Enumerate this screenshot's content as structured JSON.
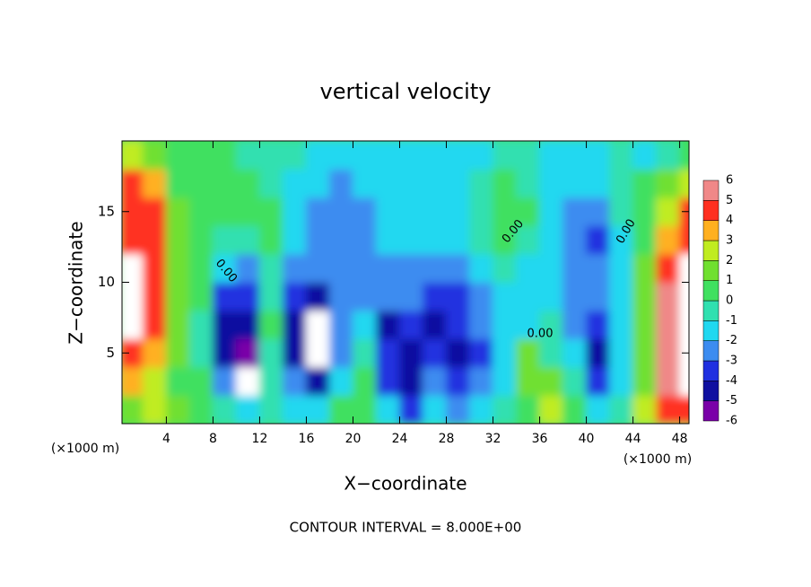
{
  "chart_data": {
    "type": "contour",
    "title": "vertical velocity",
    "x_label": "X−coordinate",
    "y_label": "Z−coordinate",
    "x_unit": "(×1000 m)",
    "footer": "CONTOUR INTERVAL = 8.000E+00",
    "contour_label": "0.00",
    "xlim": [
      0.2,
      48.8
    ],
    "ylim": [
      0,
      20
    ],
    "xticks": [
      4,
      8,
      12,
      16,
      20,
      24,
      28,
      32,
      36,
      40,
      44,
      48
    ],
    "yticks": [
      5,
      10,
      15
    ],
    "x": [
      1,
      3,
      5,
      7,
      9,
      11,
      13,
      15,
      17,
      19,
      21,
      23,
      25,
      27,
      29,
      31,
      33,
      35,
      37,
      39,
      41,
      43,
      45,
      47,
      49
    ],
    "y": [
      1,
      3,
      5,
      7,
      9,
      11,
      13,
      15,
      17,
      19
    ],
    "z": [
      [
        2,
        3,
        2,
        1,
        0,
        -1,
        0,
        -1,
        -1,
        1,
        1,
        -1,
        -3,
        -1,
        -2,
        -1,
        0,
        1,
        3,
        1,
        -1,
        0,
        3,
        5,
        5
      ],
      [
        4,
        3,
        1,
        1,
        -2,
        -7,
        0,
        -2,
        -4,
        -1,
        1,
        -3,
        -4,
        -2,
        -3,
        -2,
        -1,
        2,
        2,
        0,
        -3,
        -1,
        2,
        6,
        7
      ],
      [
        5,
        4,
        2,
        0,
        -4,
        -5,
        0,
        -4,
        -7,
        -2,
        0,
        -3,
        -4,
        -3,
        -4,
        -3,
        -1,
        2,
        0,
        -1,
        -4,
        -1,
        2,
        6,
        7
      ],
      [
        7,
        5,
        2,
        0,
        -4,
        -4,
        1,
        -4,
        -7,
        -2,
        -1,
        -4,
        -3,
        -4,
        -3,
        -2,
        -1,
        -1,
        0,
        -2,
        -3,
        -1,
        2,
        6,
        7
      ],
      [
        7,
        5,
        2,
        1,
        -3,
        -3,
        0,
        -3,
        -4,
        -2,
        -2,
        -2,
        -2,
        -3,
        -3,
        -2,
        -1,
        -1,
        -1,
        -2,
        -2,
        -1,
        2,
        6,
        7
      ],
      [
        7,
        5,
        2,
        1,
        -1,
        -2,
        0,
        -2,
        -2,
        -2,
        -2,
        -2,
        -2,
        -2,
        -2,
        -1,
        0,
        -1,
        -1,
        -2,
        -2,
        -1,
        2,
        5,
        7
      ],
      [
        5,
        5,
        2,
        1,
        0,
        0,
        1,
        -1,
        -2,
        -2,
        -2,
        -1,
        -1,
        -1,
        -1,
        0,
        1,
        0,
        -1,
        -2,
        -3,
        -1,
        1,
        4,
        5
      ],
      [
        5,
        5,
        2,
        1,
        1,
        1,
        1,
        -1,
        -2,
        -2,
        -2,
        -1,
        -1,
        -1,
        -1,
        0,
        1,
        1,
        -1,
        -2,
        -2,
        0,
        1,
        3,
        5
      ],
      [
        5,
        4,
        1,
        1,
        1,
        1,
        0,
        -1,
        -1,
        -2,
        -1,
        -1,
        -1,
        -1,
        -1,
        0,
        1,
        0,
        -1,
        -1,
        -1,
        0,
        1,
        2,
        3
      ],
      [
        3,
        2,
        1,
        1,
        1,
        0,
        0,
        0,
        -1,
        -1,
        -1,
        -1,
        -1,
        -1,
        -1,
        -1,
        0,
        0,
        -1,
        -1,
        -1,
        0,
        -1,
        0,
        1
      ]
    ],
    "levels": [
      -6,
      -5,
      -4,
      -3,
      -2,
      -1,
      0,
      1,
      2,
      3,
      4,
      5,
      6
    ],
    "colors": [
      "#7a00a8",
      "#1010a0",
      "#2030e0",
      "#3c8cf0",
      "#20d8f0",
      "#30e0b0",
      "#40e060",
      "#70e030",
      "#c0ec20",
      "#ffb020",
      "#ff3020",
      "#f08888"
    ]
  }
}
